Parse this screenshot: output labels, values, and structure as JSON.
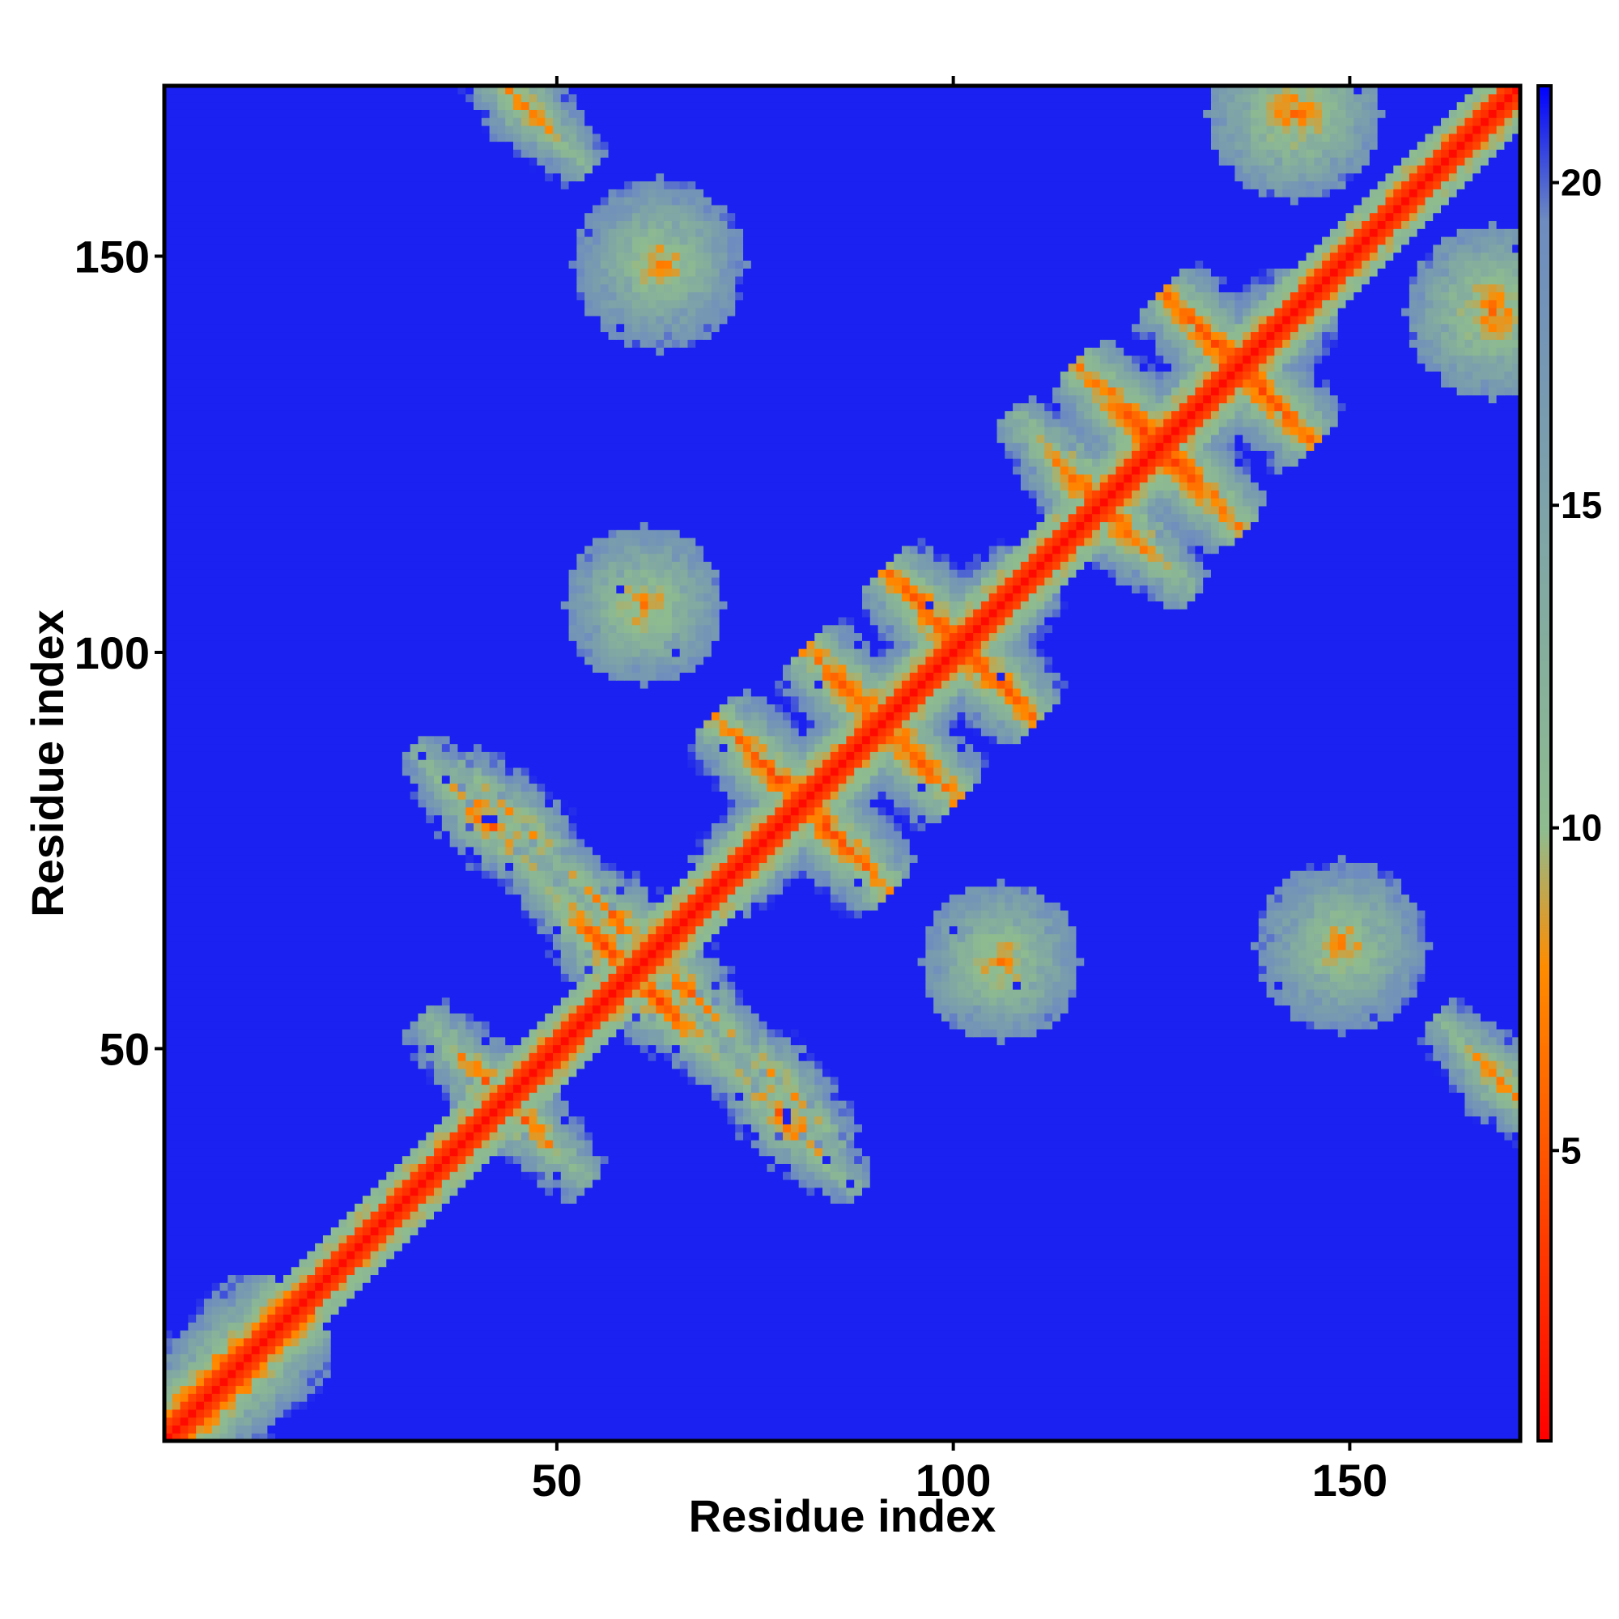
{
  "chart_data": {
    "type": "heatmap",
    "title": "",
    "xlabel": "Residue index",
    "ylabel": "Residue index",
    "x_ticks": [
      50,
      100,
      150
    ],
    "y_ticks": [
      50,
      100,
      150
    ],
    "xlim": [
      1,
      171
    ],
    "ylim": [
      1,
      171
    ],
    "residue_count": 171,
    "value_saturation": 21,
    "colorbar": {
      "ticks": [
        5,
        10,
        15,
        20
      ],
      "range": [
        0.5,
        21.5
      ],
      "colors": [
        "#ff0000",
        "#ff8c00",
        "#8fbc8f",
        "#6e8cbf",
        "#0000ff"
      ],
      "stops": [
        0,
        0.35,
        0.45,
        0.9,
        1.0
      ]
    },
    "description_of_structure": "Symmetric residue-residue distance map; diagonal band near 0 (red), background saturated at 21 (blue).",
    "contact_patches": [
      {
        "i": 8,
        "j": 8,
        "r": 7,
        "d": 4,
        "shape": "band"
      },
      {
        "i": 45,
        "j": 40,
        "r": 6,
        "d": 6,
        "shape": "anti"
      },
      {
        "i": 55,
        "j": 62,
        "r": 8,
        "d": 5,
        "shape": "anti"
      },
      {
        "i": 65,
        "j": 57,
        "r": 7,
        "d": 6,
        "shape": "anti"
      },
      {
        "i": 80,
        "j": 80,
        "r": 10,
        "d": 5,
        "shape": "cross"
      },
      {
        "i": 90,
        "j": 90,
        "r": 8,
        "d": 5,
        "shape": "cross"
      },
      {
        "i": 100,
        "j": 100,
        "r": 8,
        "d": 5,
        "shape": "cross"
      },
      {
        "i": 125,
        "j": 125,
        "r": 9,
        "d": 5,
        "shape": "cross"
      },
      {
        "i": 135,
        "j": 135,
        "r": 8,
        "d": 5,
        "shape": "cross"
      },
      {
        "i": 40,
        "j": 78,
        "r": 7,
        "d": 6,
        "shape": "anti"
      },
      {
        "i": 77,
        "j": 45,
        "r": 6,
        "d": 7,
        "shape": "anti"
      },
      {
        "i": 120,
        "j": 115,
        "r": 7,
        "d": 6,
        "shape": "anti"
      },
      {
        "i": 115,
        "j": 121,
        "r": 6,
        "d": 6,
        "shape": "anti"
      },
      {
        "i": 45,
        "j": 168,
        "r": 6,
        "d": 7,
        "shape": "anti"
      },
      {
        "i": 168,
        "j": 45,
        "r": 6,
        "d": 7,
        "shape": "anti"
      },
      {
        "i": 62,
        "j": 148,
        "r": 5,
        "d": 8,
        "shape": "blob"
      },
      {
        "i": 148,
        "j": 62,
        "r": 5,
        "d": 8,
        "shape": "blob"
      },
      {
        "i": 105,
        "j": 60,
        "r": 4,
        "d": 8,
        "shape": "blob"
      },
      {
        "i": 60,
        "j": 105,
        "r": 4,
        "d": 8,
        "shape": "blob"
      },
      {
        "i": 142,
        "j": 167,
        "r": 5,
        "d": 7,
        "shape": "blob"
      },
      {
        "i": 167,
        "j": 142,
        "r": 5,
        "d": 7,
        "shape": "blob"
      }
    ]
  }
}
